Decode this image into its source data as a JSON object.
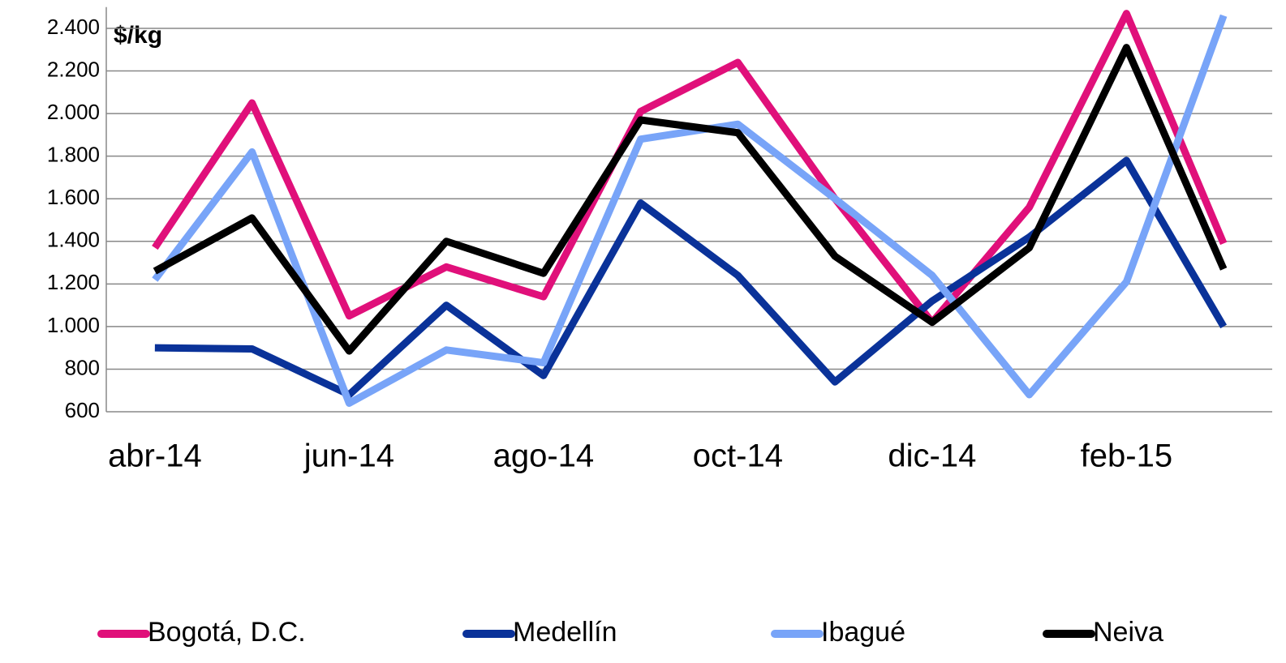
{
  "chart_data": {
    "type": "line",
    "annotation": "$/kg",
    "categories": [
      "abr-14",
      null,
      "jun-14",
      null,
      "ago-14",
      null,
      "oct-14",
      null,
      "dic-14",
      null,
      "feb-15",
      null
    ],
    "series": [
      {
        "name": "Bogotá, D.C.",
        "color": "#e0107a",
        "values": [
          1370,
          2050,
          1050,
          1280,
          1140,
          2010,
          2240,
          1600,
          1020,
          1560,
          2470,
          1390
        ]
      },
      {
        "name": "Medellín",
        "color": "#0a3299",
        "values": [
          900,
          895,
          680,
          1100,
          770,
          1580,
          1240,
          740,
          1120,
          1420,
          1780,
          1000
        ]
      },
      {
        "name": "Ibagué",
        "color": "#78a4f8",
        "values": [
          1220,
          1820,
          640,
          890,
          830,
          1880,
          1950,
          1600,
          1240,
          680,
          1210,
          2460
        ]
      },
      {
        "name": "Neiva",
        "color": "#000000",
        "values": [
          1260,
          1510,
          885,
          1400,
          1250,
          1970,
          1910,
          1330,
          1020,
          1370,
          2310,
          1270
        ]
      }
    ],
    "ylim": [
      600,
      2500
    ],
    "yticks": [
      600,
      800,
      {
        "value": 1000,
        "label": "1.000"
      },
      {
        "value": 1200,
        "label": "1.200"
      },
      {
        "value": 1400,
        "label": "1.400"
      },
      {
        "value": 1600,
        "label": "1.600"
      },
      {
        "value": 1800,
        "label": "1.800"
      },
      {
        "value": 2000,
        "label": "2.000"
      },
      {
        "value": 2200,
        "label": "2.200"
      },
      {
        "value": 2400,
        "label": "2.400"
      }
    ],
    "grid": true,
    "legend": "bottom"
  }
}
